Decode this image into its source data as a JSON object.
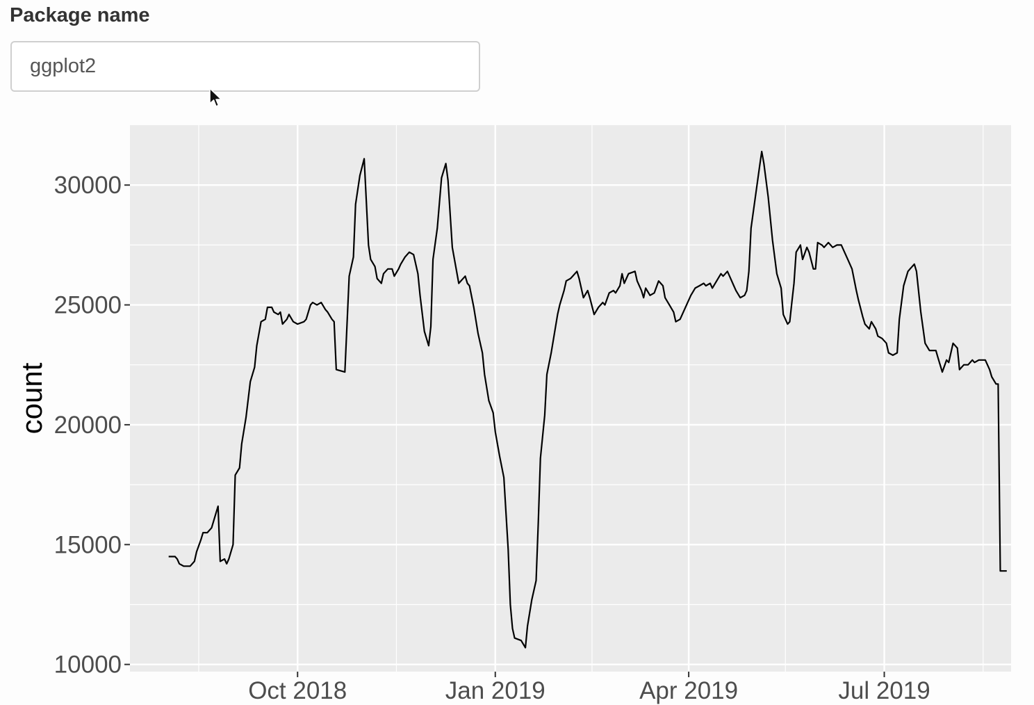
{
  "input": {
    "label": "Package name",
    "value": "ggplot2"
  },
  "colors": {
    "panel": "#ebebeb",
    "grid": "#ffffff",
    "line": "#000000"
  },
  "chart_data": {
    "type": "line",
    "ylabel": "count",
    "xlabel": "",
    "xlim": [
      "2018-07-15",
      "2019-08-29"
    ],
    "ylim": [
      9700,
      32500
    ],
    "x_major_ticks": [
      {
        "date": "2018-10-01",
        "label": "Oct 2018"
      },
      {
        "date": "2019-01-01",
        "label": "Jan 2019"
      },
      {
        "date": "2019-04-01",
        "label": "Apr 2019"
      },
      {
        "date": "2019-07-01",
        "label": "Jul 2019"
      }
    ],
    "x_minor_ticks": [
      "2018-08-16",
      "2018-11-16",
      "2019-02-15",
      "2019-05-16",
      "2019-08-16"
    ],
    "y_major_ticks": [
      10000,
      15000,
      20000,
      25000,
      30000
    ],
    "y_minor_ticks": [
      12500,
      17500,
      22500,
      27500
    ],
    "series": [
      {
        "points": [
          [
            "2018-08-02",
            14500
          ],
          [
            "2018-08-05",
            14500
          ],
          [
            "2018-08-06",
            14400
          ],
          [
            "2018-08-07",
            14200
          ],
          [
            "2018-08-09",
            14100
          ],
          [
            "2018-08-12",
            14100
          ],
          [
            "2018-08-14",
            14300
          ],
          [
            "2018-08-15",
            14700
          ],
          [
            "2018-08-17",
            15200
          ],
          [
            "2018-08-18",
            15500
          ],
          [
            "2018-08-20",
            15500
          ],
          [
            "2018-08-22",
            15700
          ],
          [
            "2018-08-23",
            16000
          ],
          [
            "2018-08-25",
            16600
          ],
          [
            "2018-08-26",
            14300
          ],
          [
            "2018-08-28",
            14400
          ],
          [
            "2018-08-29",
            14200
          ],
          [
            "2018-08-30",
            14400
          ],
          [
            "2018-09-01",
            15000
          ],
          [
            "2018-09-02",
            17900
          ],
          [
            "2018-09-04",
            18200
          ],
          [
            "2018-09-05",
            19200
          ],
          [
            "2018-09-07",
            20300
          ],
          [
            "2018-09-09",
            21800
          ],
          [
            "2018-09-11",
            22400
          ],
          [
            "2018-09-12",
            23300
          ],
          [
            "2018-09-14",
            24300
          ],
          [
            "2018-09-16",
            24400
          ],
          [
            "2018-09-17",
            24900
          ],
          [
            "2018-09-19",
            24900
          ],
          [
            "2018-09-20",
            24700
          ],
          [
            "2018-09-22",
            24600
          ],
          [
            "2018-09-23",
            24700
          ],
          [
            "2018-09-24",
            24200
          ],
          [
            "2018-09-26",
            24400
          ],
          [
            "2018-09-27",
            24600
          ],
          [
            "2018-09-29",
            24300
          ],
          [
            "2018-10-01",
            24200
          ],
          [
            "2018-10-04",
            24300
          ],
          [
            "2018-10-05",
            24400
          ],
          [
            "2018-10-07",
            25000
          ],
          [
            "2018-10-08",
            25100
          ],
          [
            "2018-10-10",
            25000
          ],
          [
            "2018-10-12",
            25100
          ],
          [
            "2018-10-14",
            24800
          ],
          [
            "2018-10-15",
            24700
          ],
          [
            "2018-10-17",
            24400
          ],
          [
            "2018-10-18",
            24300
          ],
          [
            "2018-10-19",
            22300
          ],
          [
            "2018-10-23",
            22200
          ],
          [
            "2018-10-25",
            26200
          ],
          [
            "2018-10-27",
            27000
          ],
          [
            "2018-10-28",
            29200
          ],
          [
            "2018-10-30",
            30400
          ],
          [
            "2018-11-01",
            31100
          ],
          [
            "2018-11-03",
            27500
          ],
          [
            "2018-11-04",
            26900
          ],
          [
            "2018-11-06",
            26600
          ],
          [
            "2018-11-07",
            26100
          ],
          [
            "2018-11-09",
            25900
          ],
          [
            "2018-11-10",
            26300
          ],
          [
            "2018-11-12",
            26500
          ],
          [
            "2018-11-14",
            26500
          ],
          [
            "2018-11-15",
            26200
          ],
          [
            "2018-11-17",
            26500
          ],
          [
            "2018-11-18",
            26700
          ],
          [
            "2018-11-20",
            27000
          ],
          [
            "2018-11-22",
            27200
          ],
          [
            "2018-11-24",
            27100
          ],
          [
            "2018-11-26",
            26300
          ],
          [
            "2018-11-27",
            25400
          ],
          [
            "2018-11-29",
            23900
          ],
          [
            "2018-12-01",
            23300
          ],
          [
            "2018-12-02",
            24100
          ],
          [
            "2018-12-03",
            26900
          ],
          [
            "2018-12-05",
            28200
          ],
          [
            "2018-12-07",
            30300
          ],
          [
            "2018-12-09",
            30900
          ],
          [
            "2018-12-10",
            30200
          ],
          [
            "2018-12-12",
            27400
          ],
          [
            "2018-12-15",
            25900
          ],
          [
            "2018-12-18",
            26200
          ],
          [
            "2018-12-19",
            25900
          ],
          [
            "2018-12-20",
            25800
          ],
          [
            "2018-12-22",
            24900
          ],
          [
            "2018-12-24",
            23800
          ],
          [
            "2018-12-26",
            23000
          ],
          [
            "2018-12-27",
            22100
          ],
          [
            "2018-12-29",
            21000
          ],
          [
            "2018-12-31",
            20500
          ],
          [
            "2019-01-01",
            19700
          ],
          [
            "2019-01-03",
            18700
          ],
          [
            "2019-01-05",
            17800
          ],
          [
            "2019-01-07",
            14800
          ],
          [
            "2019-01-08",
            12500
          ],
          [
            "2019-01-09",
            11500
          ],
          [
            "2019-01-10",
            11100
          ],
          [
            "2019-01-13",
            11000
          ],
          [
            "2019-01-15",
            10700
          ],
          [
            "2019-01-16",
            11600
          ],
          [
            "2019-01-18",
            12700
          ],
          [
            "2019-01-20",
            13500
          ],
          [
            "2019-01-21",
            15900
          ],
          [
            "2019-01-22",
            18600
          ],
          [
            "2019-01-24",
            20400
          ],
          [
            "2019-01-25",
            22100
          ],
          [
            "2019-01-27",
            23000
          ],
          [
            "2019-01-30",
            24600
          ],
          [
            "2019-01-31",
            25000
          ],
          [
            "2019-02-02",
            25600
          ],
          [
            "2019-02-03",
            26000
          ],
          [
            "2019-02-05",
            26100
          ],
          [
            "2019-02-06",
            26200
          ],
          [
            "2019-02-08",
            26400
          ],
          [
            "2019-02-09",
            26100
          ],
          [
            "2019-02-11",
            25300
          ],
          [
            "2019-02-13",
            25600
          ],
          [
            "2019-02-14",
            25300
          ],
          [
            "2019-02-16",
            24600
          ],
          [
            "2019-02-18",
            24900
          ],
          [
            "2019-02-20",
            25100
          ],
          [
            "2019-02-21",
            25000
          ],
          [
            "2019-02-23",
            25500
          ],
          [
            "2019-02-25",
            25600
          ],
          [
            "2019-02-26",
            25500
          ],
          [
            "2019-02-28",
            25800
          ],
          [
            "2019-03-01",
            26300
          ],
          [
            "2019-03-02",
            25900
          ],
          [
            "2019-03-04",
            26300
          ],
          [
            "2019-03-07",
            26400
          ],
          [
            "2019-03-08",
            26000
          ],
          [
            "2019-03-10",
            25600
          ],
          [
            "2019-03-11",
            25300
          ],
          [
            "2019-03-12",
            25700
          ],
          [
            "2019-03-14",
            25400
          ],
          [
            "2019-03-16",
            25500
          ],
          [
            "2019-03-18",
            26000
          ],
          [
            "2019-03-20",
            25800
          ],
          [
            "2019-03-21",
            25300
          ],
          [
            "2019-03-23",
            25000
          ],
          [
            "2019-03-25",
            24700
          ],
          [
            "2019-03-26",
            24300
          ],
          [
            "2019-03-28",
            24400
          ],
          [
            "2019-03-29",
            24600
          ],
          [
            "2019-03-31",
            25000
          ],
          [
            "2019-04-02",
            25400
          ],
          [
            "2019-04-04",
            25700
          ],
          [
            "2019-04-06",
            25800
          ],
          [
            "2019-04-08",
            25900
          ],
          [
            "2019-04-09",
            25800
          ],
          [
            "2019-04-11",
            25900
          ],
          [
            "2019-04-12",
            25700
          ],
          [
            "2019-04-14",
            26000
          ],
          [
            "2019-04-16",
            26300
          ],
          [
            "2019-04-17",
            26200
          ],
          [
            "2019-04-19",
            26400
          ],
          [
            "2019-04-20",
            26200
          ],
          [
            "2019-04-22",
            25800
          ],
          [
            "2019-04-23",
            25600
          ],
          [
            "2019-04-25",
            25300
          ],
          [
            "2019-04-27",
            25400
          ],
          [
            "2019-04-28",
            25600
          ],
          [
            "2019-04-29",
            26400
          ],
          [
            "2019-04-30",
            28200
          ],
          [
            "2019-05-02",
            29500
          ],
          [
            "2019-05-04",
            30800
          ],
          [
            "2019-05-05",
            31400
          ],
          [
            "2019-05-06",
            30900
          ],
          [
            "2019-05-08",
            29500
          ],
          [
            "2019-05-10",
            27700
          ],
          [
            "2019-05-12",
            26300
          ],
          [
            "2019-05-13",
            26000
          ],
          [
            "2019-05-14",
            25700
          ],
          [
            "2019-05-15",
            24600
          ],
          [
            "2019-05-17",
            24200
          ],
          [
            "2019-05-18",
            24300
          ],
          [
            "2019-05-19",
            25100
          ],
          [
            "2019-05-20",
            25900
          ],
          [
            "2019-05-21",
            27200
          ],
          [
            "2019-05-23",
            27500
          ],
          [
            "2019-05-24",
            26900
          ],
          [
            "2019-05-26",
            27400
          ],
          [
            "2019-05-27",
            27200
          ],
          [
            "2019-05-29",
            26500
          ],
          [
            "2019-05-30",
            26500
          ],
          [
            "2019-05-31",
            27600
          ],
          [
            "2019-06-02",
            27500
          ],
          [
            "2019-06-03",
            27400
          ],
          [
            "2019-06-05",
            27600
          ],
          [
            "2019-06-07",
            27400
          ],
          [
            "2019-06-09",
            27500
          ],
          [
            "2019-06-11",
            27500
          ],
          [
            "2019-06-13",
            27100
          ],
          [
            "2019-06-14",
            26900
          ],
          [
            "2019-06-16",
            26500
          ],
          [
            "2019-06-18",
            25600
          ],
          [
            "2019-06-19",
            25200
          ],
          [
            "2019-06-21",
            24500
          ],
          [
            "2019-06-22",
            24200
          ],
          [
            "2019-06-24",
            24000
          ],
          [
            "2019-06-25",
            24300
          ],
          [
            "2019-06-27",
            24000
          ],
          [
            "2019-06-28",
            23700
          ],
          [
            "2019-06-30",
            23600
          ],
          [
            "2019-07-02",
            23400
          ],
          [
            "2019-07-03",
            23000
          ],
          [
            "2019-07-05",
            22900
          ],
          [
            "2019-07-07",
            23000
          ],
          [
            "2019-07-08",
            24400
          ],
          [
            "2019-07-10",
            25800
          ],
          [
            "2019-07-12",
            26400
          ],
          [
            "2019-07-13",
            26500
          ],
          [
            "2019-07-15",
            26700
          ],
          [
            "2019-07-16",
            26400
          ],
          [
            "2019-07-18",
            24700
          ],
          [
            "2019-07-20",
            23400
          ],
          [
            "2019-07-22",
            23100
          ],
          [
            "2019-07-25",
            23100
          ],
          [
            "2019-07-26",
            22800
          ],
          [
            "2019-07-28",
            22200
          ],
          [
            "2019-07-30",
            22700
          ],
          [
            "2019-07-31",
            22600
          ],
          [
            "2019-08-02",
            23400
          ],
          [
            "2019-08-04",
            23200
          ],
          [
            "2019-08-05",
            22300
          ],
          [
            "2019-08-07",
            22500
          ],
          [
            "2019-08-09",
            22500
          ],
          [
            "2019-08-11",
            22700
          ],
          [
            "2019-08-12",
            22600
          ],
          [
            "2019-08-14",
            22700
          ],
          [
            "2019-08-17",
            22700
          ],
          [
            "2019-08-19",
            22300
          ],
          [
            "2019-08-20",
            22000
          ],
          [
            "2019-08-22",
            21700
          ],
          [
            "2019-08-23",
            21700
          ],
          [
            "2019-08-24",
            13900
          ],
          [
            "2019-08-27",
            13900
          ]
        ]
      }
    ]
  }
}
